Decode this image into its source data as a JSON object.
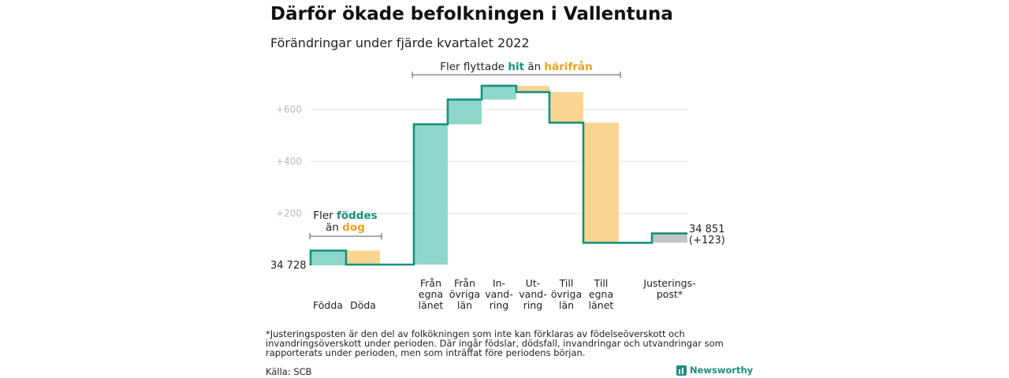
{
  "header": {
    "title": "Därför ökade befolkningen i Vallentuna",
    "subtitle": "Förändringar under fjärde kvartalet 2022"
  },
  "colors": {
    "inflow": "#8fd6ca",
    "outflow": "#fad591",
    "adjustment": "#c5c5c5",
    "line": "#16907d",
    "highlight_in": "#16907d",
    "highlight_out": "#eba21d"
  },
  "annotations": {
    "births": {
      "line1": "Fler ",
      "hl1": "föddes",
      "line2": "än ",
      "hl2": "dog"
    },
    "migration": {
      "text1": "Fler flyttade ",
      "hl1": "hit",
      "text2": " än ",
      "hl2": "härifrån"
    }
  },
  "chart_data": {
    "type": "waterfall",
    "title": "Därför ökade befolkningen i Vallentuna",
    "subtitle": "Förändringar under fjärde kvartalet 2022",
    "start_label": "34 728",
    "start_value": 34728,
    "end_label": "34 851",
    "end_change_label": "(+123)",
    "end_value": 34851,
    "y_axis": {
      "unit": "change",
      "ylim": [
        0,
        700
      ],
      "ticks": [
        200,
        400,
        600
      ],
      "tick_labels": [
        "+200",
        "+400",
        "+600"
      ],
      "grid": true
    },
    "steps": [
      {
        "label_lines": [
          "Födda"
        ],
        "change": 57,
        "kind": "in"
      },
      {
        "label_lines": [
          "Döda"
        ],
        "change": -54,
        "kind": "out"
      },
      {
        "label_lines": [
          "Från",
          "egna",
          "länet"
        ],
        "change": 540,
        "kind": "in"
      },
      {
        "label_lines": [
          "Från",
          "övriga",
          "län"
        ],
        "change": 95,
        "kind": "in"
      },
      {
        "label_lines": [
          "In-",
          "vand-",
          "ring"
        ],
        "change": 53,
        "kind": "in"
      },
      {
        "label_lines": [
          "Ut-",
          "vand-",
          "ring"
        ],
        "change": -24,
        "kind": "out"
      },
      {
        "label_lines": [
          "Till",
          "övriga",
          "län"
        ],
        "change": -118,
        "kind": "out"
      },
      {
        "label_lines": [
          "Till",
          "egna",
          "länet"
        ],
        "change": -462,
        "kind": "out"
      },
      {
        "label_lines": [
          "Justerings-",
          "post*"
        ],
        "change": 36,
        "kind": "adjust"
      }
    ],
    "cumulative_end": 123
  },
  "footer": {
    "footnote": "*Justeringsposten är den del av folkökningen som inte kan förklaras av födelseöverskott och invandringsöverskott under perioden. Där ingår födslar, dödsfall, invandringar och utvandringar som rapporterats under perioden, men som inträffat före periodens början.",
    "source": "Källa: SCB",
    "brand": "Newsworthy"
  }
}
